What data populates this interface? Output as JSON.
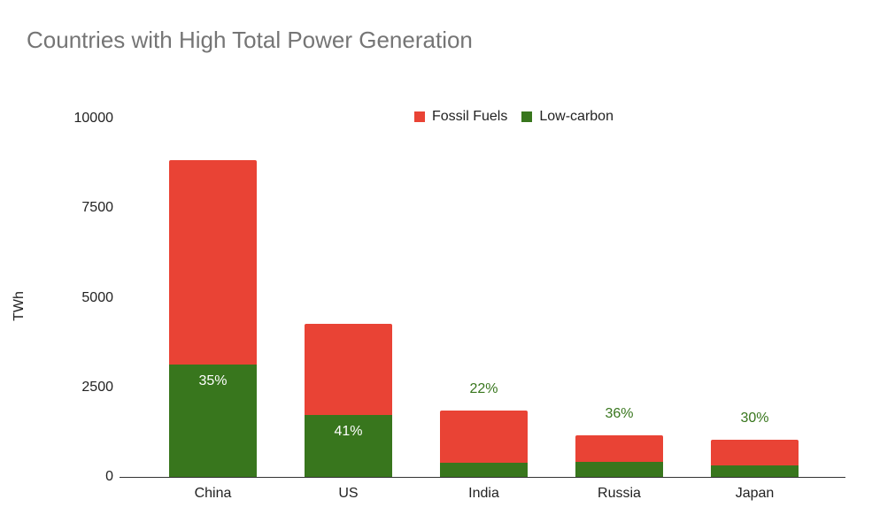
{
  "chart_data": {
    "type": "bar",
    "stacked": true,
    "title": "Countries with High Total Power Generation",
    "xlabel": "",
    "ylabel": "TWh",
    "ylim": [
      0,
      10000
    ],
    "yticks": [
      0,
      2500,
      5000,
      7500,
      10000
    ],
    "categories": [
      "China",
      "US",
      "India",
      "Russia",
      "Japan"
    ],
    "series": [
      {
        "name": "Low-carbon",
        "color": "#38761d",
        "values": [
          3130,
          1730,
          400,
          420,
          310
        ]
      },
      {
        "name": "Fossil Fuels",
        "color": "#e94335",
        "values": [
          5710,
          2540,
          1450,
          740,
          730
        ]
      }
    ],
    "annotations": [
      {
        "category": "China",
        "label": "35%",
        "position": "inside-green"
      },
      {
        "category": "US",
        "label": "41%",
        "position": "inside-green"
      },
      {
        "category": "India",
        "label": "22%",
        "position": "above"
      },
      {
        "category": "Russia",
        "label": "36%",
        "position": "above"
      },
      {
        "category": "Japan",
        "label": "30%",
        "position": "above"
      }
    ],
    "legend": {
      "position": "top",
      "entries": [
        "Fossil Fuels",
        "Low-carbon"
      ]
    },
    "grid": false
  },
  "title": "Countries with High Total Power Generation",
  "legend": {
    "fossil_label": "Fossil Fuels",
    "fossil_color": "#e94335",
    "low_label": "Low-carbon",
    "low_color": "#38761d"
  },
  "axis": {
    "ylabel": "TWh",
    "yticks": [
      "10000",
      "7500",
      "5000",
      "2500",
      "0"
    ]
  },
  "bars": [
    {
      "category": "China",
      "low": 3130,
      "fossil": 5710,
      "pct": "35%"
    },
    {
      "category": "US",
      "low": 1730,
      "fossil": 2540,
      "pct": "41%"
    },
    {
      "category": "India",
      "low": 400,
      "fossil": 1450,
      "pct": "22%"
    },
    {
      "category": "Russia",
      "low": 420,
      "fossil": 740,
      "pct": "36%"
    },
    {
      "category": "Japan",
      "low": 310,
      "fossil": 730,
      "pct": "30%"
    }
  ]
}
